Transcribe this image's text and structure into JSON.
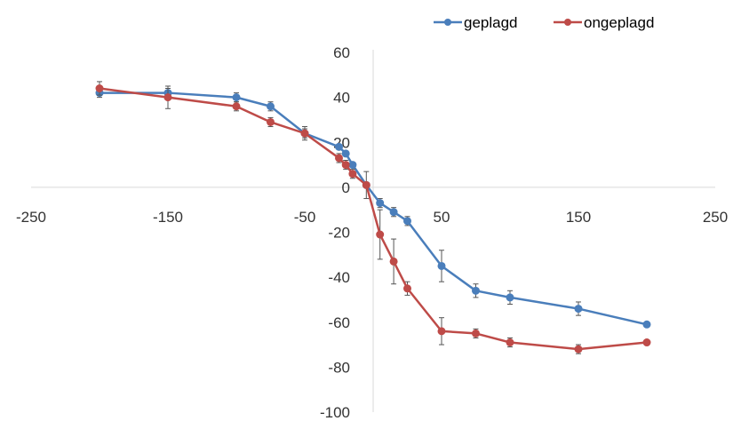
{
  "chart_data": {
    "type": "line",
    "title": "",
    "xlabel": "",
    "ylabel": "",
    "xlim": [
      -250,
      250
    ],
    "ylim": [
      -100,
      60
    ],
    "x_ticks": [
      -250,
      -150,
      -50,
      50,
      150,
      250
    ],
    "y_ticks": [
      -100,
      -80,
      -60,
      -40,
      -20,
      0,
      20,
      40,
      60
    ],
    "grid": false,
    "legend_position": "top-right",
    "series": [
      {
        "name": "geplagd",
        "color": "#4a7ebb",
        "x": [
          -200,
          -150,
          -100,
          -75,
          -50,
          -25,
          -20,
          -15,
          -5,
          5,
          15,
          25,
          50,
          75,
          100,
          150,
          200
        ],
        "y": [
          42,
          42,
          40,
          36,
          24,
          18,
          15,
          10,
          1,
          -7,
          -11,
          -15,
          -35,
          -46,
          -49,
          -54,
          -61
        ],
        "err": [
          2,
          2,
          2,
          2,
          2,
          1,
          1,
          1,
          1,
          2,
          2,
          2,
          7,
          3,
          3,
          3,
          1
        ]
      },
      {
        "name": "ongeplagd",
        "color": "#be4b48",
        "x": [
          -200,
          -150,
          -100,
          -75,
          -50,
          -25,
          -20,
          -15,
          -5,
          5,
          15,
          25,
          50,
          75,
          100,
          150,
          200
        ],
        "y": [
          44,
          40,
          36,
          29,
          24,
          13,
          10,
          6,
          1,
          -21,
          -33,
          -45,
          -64,
          -65,
          -69,
          -72,
          -69
        ],
        "err": [
          3,
          5,
          2,
          2,
          3,
          2,
          2,
          2,
          6,
          11,
          10,
          3,
          6,
          2,
          2,
          2,
          1
        ]
      }
    ]
  }
}
